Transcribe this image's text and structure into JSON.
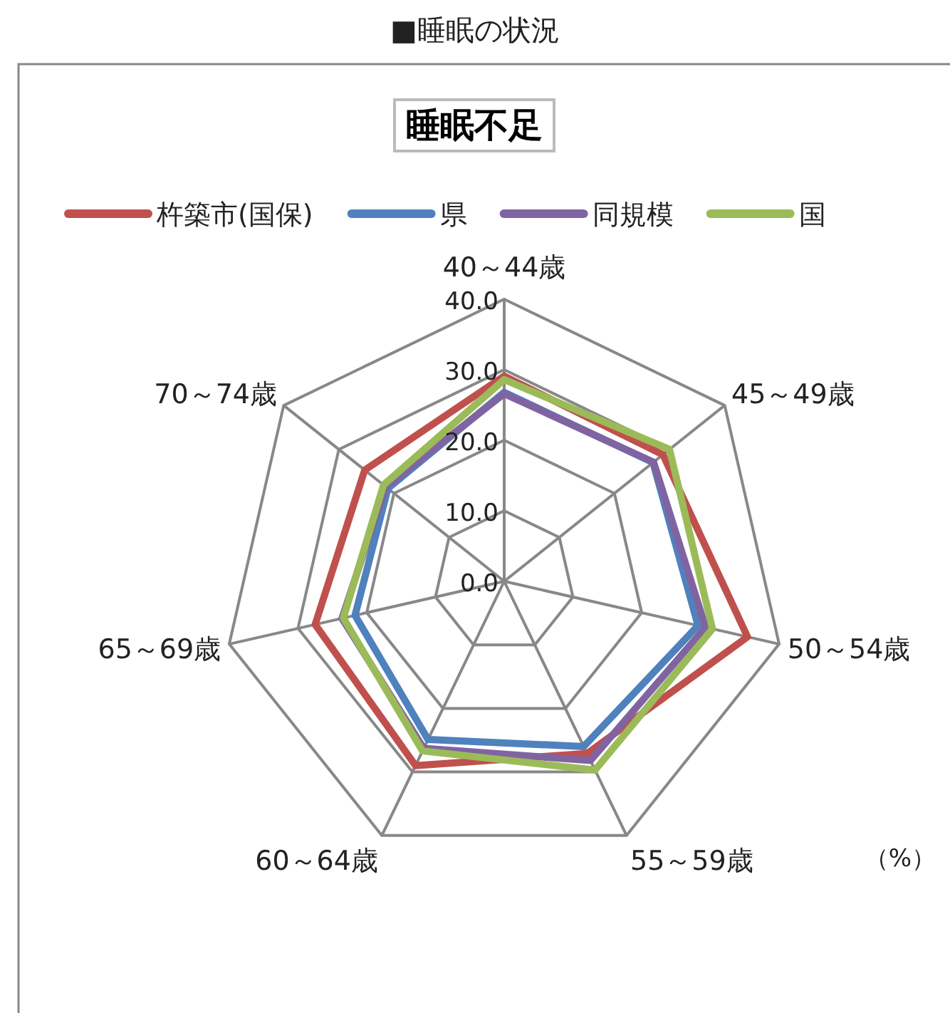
{
  "chart_data": {
    "type": "radar",
    "title": "■睡眠の状況",
    "subtitle": "睡眠不足",
    "categories": [
      "40～44歳",
      "45～49歳",
      "50～54歳",
      "55～59歳",
      "60～64歳",
      "65～69歳",
      "70～74歳"
    ],
    "series": [
      {
        "name": "杵築市(国保)",
        "color": "#c0504d",
        "values": [
          29.1,
          28.8,
          35.4,
          27.1,
          29.0,
          27.5,
          25.3
        ]
      },
      {
        "name": "県",
        "color": "#4f81bd",
        "values": [
          26.8,
          27.0,
          28.2,
          26.0,
          24.9,
          21.7,
          21.1
        ]
      },
      {
        "name": "同規模",
        "color": "#8064a2",
        "values": [
          26.6,
          27.1,
          29.3,
          28.2,
          26.3,
          23.6,
          21.5
        ]
      },
      {
        "name": "国",
        "color": "#9bbb59",
        "values": [
          28.6,
          30.0,
          30.3,
          29.7,
          26.7,
          23.4,
          21.9
        ]
      }
    ],
    "ylim": [
      0,
      40
    ],
    "yticks": [
      {
        "value": 0,
        "label": "0.0"
      },
      {
        "value": 10,
        "label": "10.0"
      },
      {
        "value": 20,
        "label": "20.0"
      },
      {
        "value": 30,
        "label": "30.0"
      },
      {
        "value": 40,
        "label": "40.0"
      }
    ],
    "legend": "top",
    "grid": true,
    "annotations": [
      "（%）"
    ]
  }
}
